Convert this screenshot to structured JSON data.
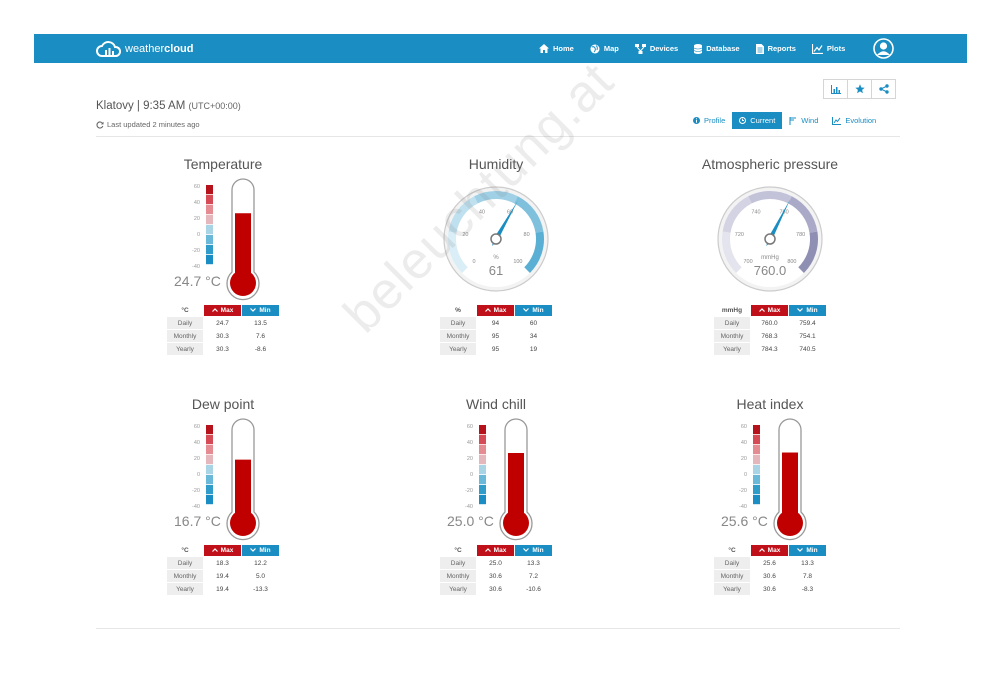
{
  "brand": {
    "name_light": "weather",
    "name_bold": "cloud"
  },
  "nav": [
    {
      "label": "Home",
      "icon": "home-icon"
    },
    {
      "label": "Map",
      "icon": "globe-icon"
    },
    {
      "label": "Devices",
      "icon": "devices-icon"
    },
    {
      "label": "Database",
      "icon": "database-icon"
    },
    {
      "label": "Reports",
      "icon": "report-icon"
    },
    {
      "label": "Plots",
      "icon": "chart-icon"
    }
  ],
  "station": {
    "title": "Klatovy | 9:35 AM",
    "tz": "(UTC+00:00)",
    "last_updated": "Last updated 2 minutes ago"
  },
  "view_tabs": [
    {
      "label": "Profile",
      "icon": "info-icon",
      "active": false
    },
    {
      "label": "Current",
      "icon": "clock-icon",
      "active": true
    },
    {
      "label": "Wind",
      "icon": "wind-icon",
      "active": false
    },
    {
      "label": "Evolution",
      "icon": "line-chart-icon",
      "active": false
    }
  ],
  "colors": {
    "brand": "#1a8dc2",
    "max": "#c0111a",
    "min": "#1a8dc2",
    "mercury": "#c00000"
  },
  "table_headers": {
    "max": "Max",
    "min": "Min"
  },
  "row_labels": [
    "Daily",
    "Monthly",
    "Yearly"
  ],
  "thermometer_scale": [
    "60",
    "40",
    "20",
    "0",
    "-20",
    "-40"
  ],
  "panels": {
    "temperature": {
      "title": "Temperature",
      "value": "24.7 °C",
      "reading": 24.7,
      "unit": "°C",
      "rows": [
        [
          "24.7",
          "13.5"
        ],
        [
          "30.3",
          "7.6"
        ],
        [
          "30.3",
          "-8.6"
        ]
      ]
    },
    "humidity": {
      "title": "Humidity",
      "value": "61",
      "reading": 61,
      "unit": "%",
      "gauge_unit": "%",
      "ticks": [
        "0",
        "20",
        "40",
        "60",
        "80",
        "100"
      ],
      "range": [
        0,
        100
      ],
      "rows": [
        [
          "94",
          "60"
        ],
        [
          "95",
          "34"
        ],
        [
          "95",
          "19"
        ]
      ]
    },
    "pressure": {
      "title": "Atmospheric pressure",
      "value": "760.0",
      "reading": 760.0,
      "unit": "mmHg",
      "gauge_unit": "mmHg",
      "ticks": [
        "700",
        "720",
        "740",
        "760",
        "780",
        "800"
      ],
      "range": [
        700,
        800
      ],
      "rows": [
        [
          "760.0",
          "759.4"
        ],
        [
          "768.3",
          "754.1"
        ],
        [
          "784.3",
          "740.5"
        ]
      ]
    },
    "dew_point": {
      "title": "Dew point",
      "value": "16.7 °C",
      "reading": 16.7,
      "unit": "°C",
      "rows": [
        [
          "18.3",
          "12.2"
        ],
        [
          "19.4",
          "5.0"
        ],
        [
          "19.4",
          "-13.3"
        ]
      ]
    },
    "wind_chill": {
      "title": "Wind chill",
      "value": "25.0 °C",
      "reading": 25.0,
      "unit": "°C",
      "rows": [
        [
          "25.0",
          "13.3"
        ],
        [
          "30.6",
          "7.2"
        ],
        [
          "30.6",
          "-10.6"
        ]
      ]
    },
    "heat_index": {
      "title": "Heat index",
      "value": "25.6 °C",
      "reading": 25.6,
      "unit": "°C",
      "rows": [
        [
          "25.6",
          "13.3"
        ],
        [
          "30.6",
          "7.8"
        ],
        [
          "30.6",
          "-8.3"
        ]
      ]
    }
  },
  "watermark": "beleuchtung.at"
}
